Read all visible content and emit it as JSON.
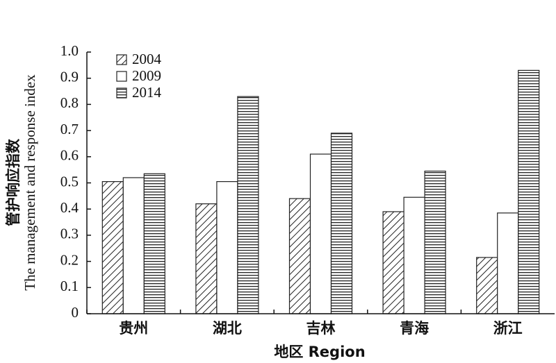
{
  "chart_data": {
    "type": "bar",
    "y_label": [
      "管护响应指数",
      "The management and response index"
    ],
    "x_label": "地区 Region",
    "categories": [
      "贵州",
      "湖北",
      "吉林",
      "青海",
      "浙江"
    ],
    "series": [
      {
        "name": "2004",
        "pattern": "diagonal",
        "color": "#222222",
        "values": [
          0.505,
          0.42,
          0.44,
          0.39,
          0.215
        ]
      },
      {
        "name": "2009",
        "pattern": "none",
        "color": "#222222",
        "values": [
          0.52,
          0.505,
          0.61,
          0.445,
          0.385
        ]
      },
      {
        "name": "2014",
        "pattern": "horizontal",
        "color": "#222222",
        "values": [
          0.535,
          0.83,
          0.69,
          0.545,
          0.93
        ]
      }
    ],
    "ylim": [
      0,
      1
    ],
    "yticks": [
      0,
      0.1,
      0.2,
      0.3,
      0.4,
      0.5,
      0.6,
      0.7,
      0.8,
      0.9,
      {
        "value": 1,
        "label": "1.0"
      }
    ],
    "grid": false,
    "legend": "top-left"
  }
}
